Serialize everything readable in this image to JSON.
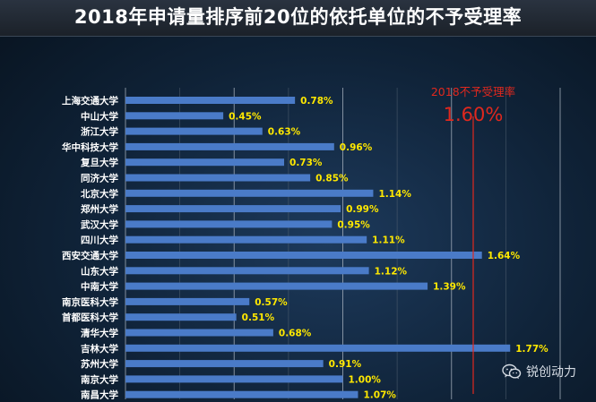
{
  "title": "2018年申请量排序前20位的依托单位的不予受理率",
  "chart_data": {
    "type": "bar",
    "orientation": "horizontal",
    "title": "2018年申请量排序前20位的依托单位的不予受理率",
    "categories": [
      "上海交通大学",
      "中山大学",
      "浙江大学",
      "华中科技大学",
      "复旦大学",
      "同济大学",
      "北京大学",
      "郑州大学",
      "武汉大学",
      "四川大学",
      "西安交通大学",
      "山东大学",
      "中南大学",
      "南京医科大学",
      "首都医科大学",
      "清华大学",
      "吉林大学",
      "苏州大学",
      "南京大学",
      "南昌大学"
    ],
    "values": [
      0.78,
      0.45,
      0.63,
      0.96,
      0.73,
      0.85,
      1.14,
      0.99,
      0.95,
      1.11,
      1.64,
      1.12,
      1.39,
      0.57,
      0.51,
      0.68,
      1.77,
      0.91,
      1.0,
      1.07
    ],
    "value_labels": [
      "0.78%",
      "0.45%",
      "0.63%",
      "0.96%",
      "0.73%",
      "0.85%",
      "1.14%",
      "0.99%",
      "0.95%",
      "1.11%",
      "1.64%",
      "1.12%",
      "1.39%",
      "0.57%",
      "0.51%",
      "0.68%",
      "1.77%",
      "0.91%",
      "1.00%",
      "1.07%"
    ],
    "xlim": [
      0,
      2.0
    ],
    "grid": true,
    "bar_color": "#4a7bc8",
    "value_label_color": "#ffe800",
    "reference_line": {
      "value": 1.6,
      "label": "2018不予受理率",
      "value_label": "1.60%",
      "color": "#e0281e"
    }
  },
  "watermark": {
    "text": "锐创动力",
    "icon": "wechat-icon"
  }
}
